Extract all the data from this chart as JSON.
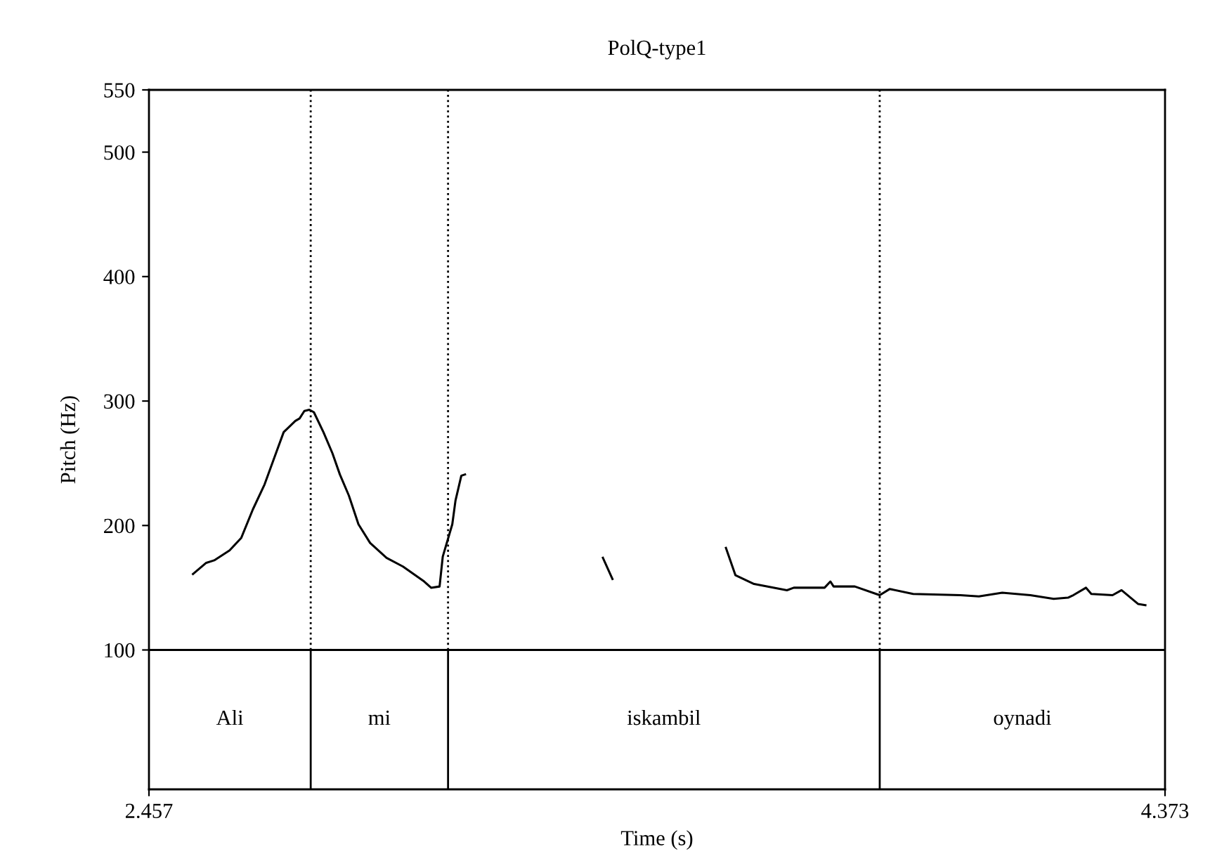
{
  "chart_data": {
    "type": "line",
    "title": "PolQ-type1",
    "xlabel": "Time (s)",
    "ylabel": "Pitch (Hz)",
    "xlim": [
      2.457,
      4.373
    ],
    "xticks": [
      2.457,
      4.373
    ],
    "ylim": [
      -12,
      550
    ],
    "yticks": [
      100,
      200,
      300,
      400,
      500,
      550
    ],
    "line_style": "solid",
    "series": [
      {
        "color": "#000000",
        "x": [
          2.54,
          2.565,
          2.58,
          2.609,
          2.631,
          2.653,
          2.675,
          2.693,
          2.711,
          2.733,
          2.741,
          2.75,
          2.759,
          2.768,
          2.786,
          2.803,
          2.817,
          2.834,
          2.852,
          2.874,
          2.905,
          2.936,
          2.976,
          2.989,
          3.005,
          3.011,
          3.029,
          3.035,
          3.046,
          3.053
        ],
        "values": [
          161,
          170,
          172,
          180,
          190,
          213,
          233,
          254,
          275,
          284,
          286,
          292,
          293,
          291,
          275,
          258,
          241,
          224,
          201,
          186,
          174,
          167,
          155,
          150,
          151,
          175,
          201,
          220,
          240,
          241
        ]
      },
      {
        "color": "#000000",
        "x": [
          3.313,
          3.331
        ],
        "values": [
          174,
          157
        ]
      },
      {
        "color": "#000000",
        "x": [
          3.545,
          3.563,
          3.598,
          3.66,
          3.673,
          3.731,
          3.742,
          3.748,
          3.788,
          3.835,
          3.854,
          3.898,
          3.987,
          4.022,
          4.066,
          4.119,
          4.163,
          4.19,
          4.2,
          4.224,
          4.234,
          4.274,
          4.291,
          4.322,
          4.336
        ],
        "values": [
          182,
          160,
          153,
          148,
          150,
          150,
          155,
          151,
          151,
          144,
          149,
          145,
          144,
          143,
          146,
          144,
          141,
          142,
          144,
          150,
          145,
          144,
          148,
          137,
          136
        ]
      }
    ],
    "ref_lines": [
      {
        "axis": "x",
        "value": 2.762,
        "color": "#000000",
        "line_style": "dotted"
      },
      {
        "axis": "x",
        "value": 3.021,
        "color": "#000000",
        "line_style": "dotted"
      },
      {
        "axis": "x",
        "value": 3.835,
        "color": "#000000",
        "line_style": "dotted"
      },
      {
        "axis": "y",
        "value": 100,
        "color": "#000000",
        "line_style": "solid"
      }
    ],
    "annotations": [
      "Ali",
      "mi",
      "iskambil",
      "oynadi"
    ]
  }
}
